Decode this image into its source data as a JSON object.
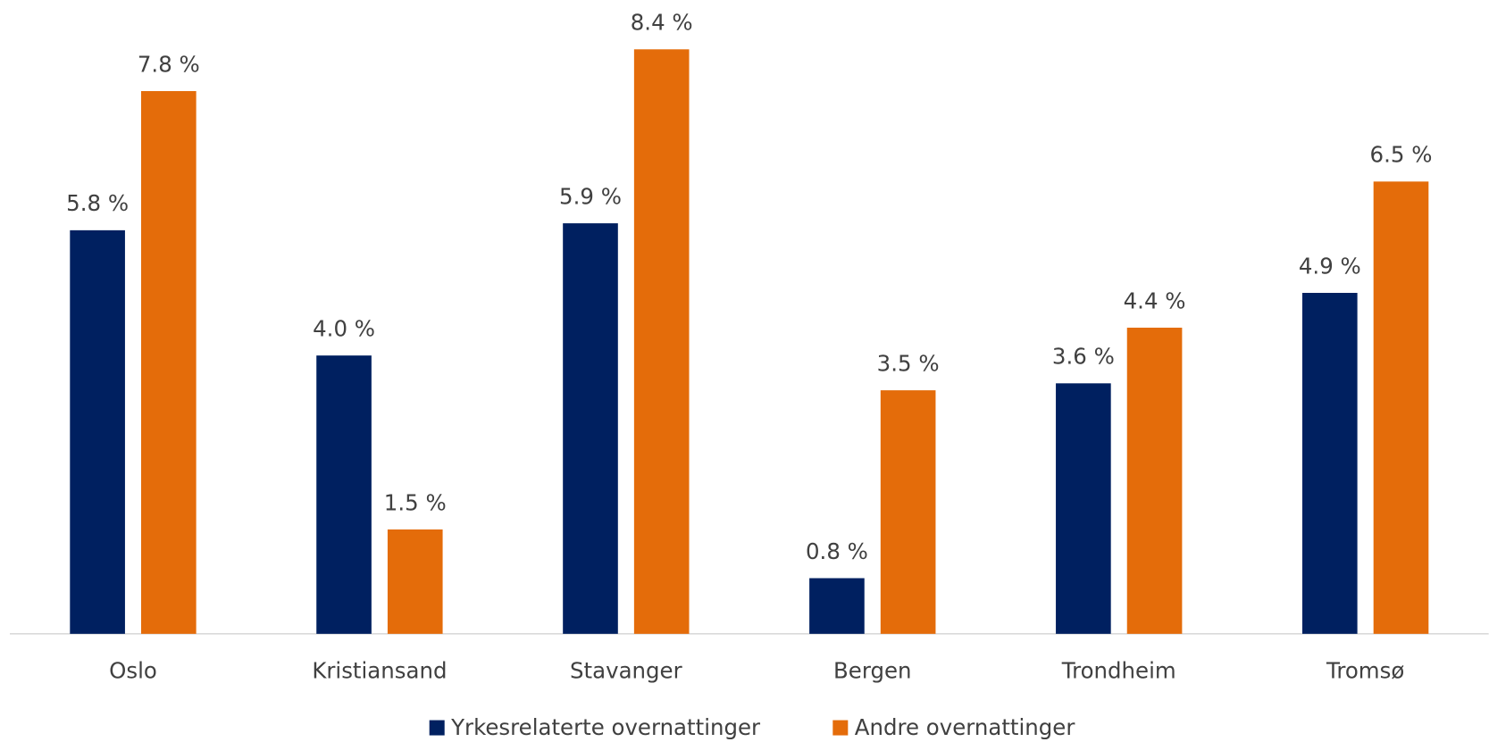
{
  "chart_data": {
    "type": "bar",
    "categories": [
      "Oslo",
      "Kristiansand",
      "Stavanger",
      "Bergen",
      "Trondheim",
      "Tromsø"
    ],
    "series": [
      {
        "name": "Yrkesrelaterte overnattinger",
        "color": "#002060",
        "values": [
          5.8,
          4.0,
          5.9,
          0.8,
          3.6,
          4.9
        ],
        "value_labels": [
          "5.8 %",
          "4.0 %",
          "5.9 %",
          "0.8 %",
          "3.6 %",
          "4.9 %"
        ]
      },
      {
        "name": "Andre overnattinger",
        "color": "#e46c0a",
        "values": [
          7.8,
          1.5,
          8.4,
          3.5,
          4.4,
          6.5
        ],
        "value_labels": [
          "7.8 %",
          "1.5 %",
          "8.4 %",
          "3.5 %",
          "4.4 %",
          "6.5 %"
        ]
      }
    ],
    "ylim": [
      0,
      9
    ],
    "legend": "bottom"
  }
}
